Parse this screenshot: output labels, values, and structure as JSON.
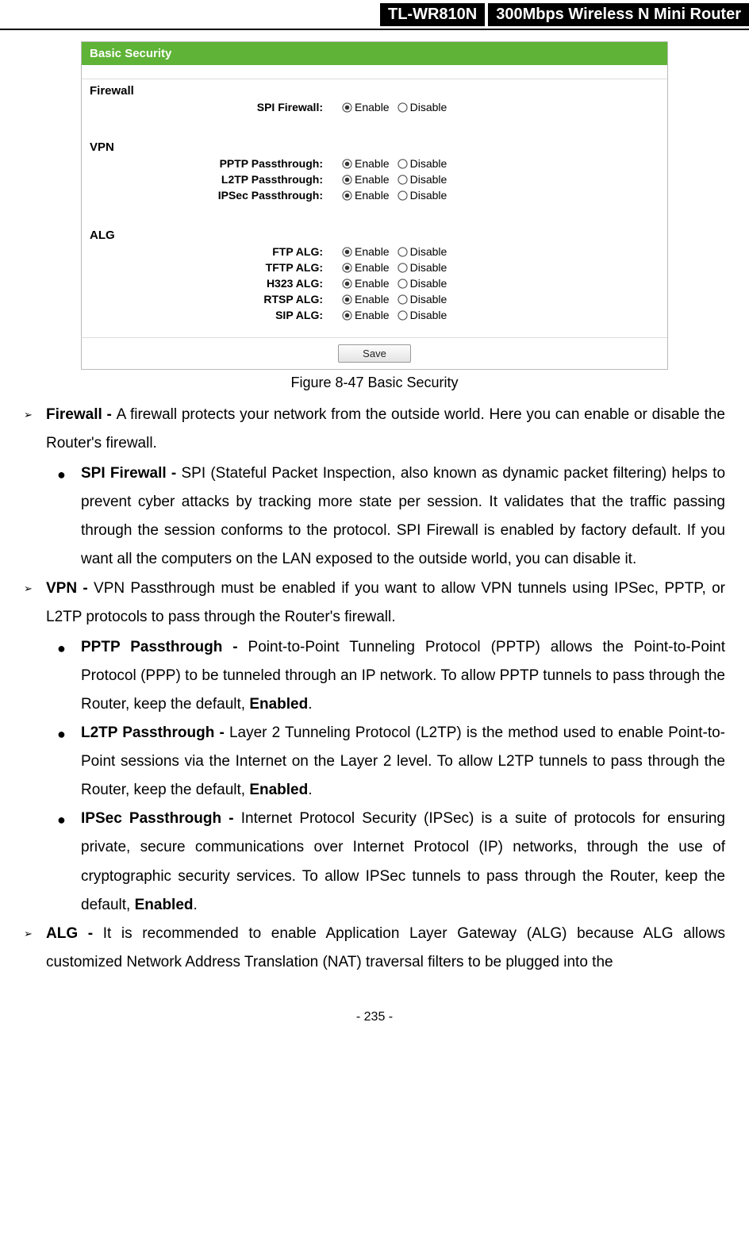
{
  "header": {
    "model": "TL-WR810N",
    "product": "300Mbps Wireless N Mini Router"
  },
  "panel": {
    "title": "Basic Security",
    "colors": {
      "title_bg": "#5fb336",
      "title_text": "#ffffff",
      "border": "#bbbbbb"
    },
    "save_button": "Save",
    "option_labels": {
      "enable": "Enable",
      "disable": "Disable"
    },
    "sections": [
      {
        "heading": "Firewall",
        "rows": [
          {
            "label": "SPI Firewall:",
            "selected": "enable"
          }
        ]
      },
      {
        "heading": "VPN",
        "rows": [
          {
            "label": "PPTP Passthrough:",
            "selected": "enable"
          },
          {
            "label": "L2TP Passthrough:",
            "selected": "enable"
          },
          {
            "label": "IPSec Passthrough:",
            "selected": "enable"
          }
        ]
      },
      {
        "heading": "ALG",
        "rows": [
          {
            "label": "FTP ALG:",
            "selected": "enable"
          },
          {
            "label": "TFTP ALG:",
            "selected": "enable"
          },
          {
            "label": "H323 ALG:",
            "selected": "enable"
          },
          {
            "label": "RTSP ALG:",
            "selected": "enable"
          },
          {
            "label": "SIP ALG:",
            "selected": "enable"
          }
        ]
      }
    ]
  },
  "figure_caption": "Figure 8-47 Basic Security",
  "doc": {
    "firewall_lead": {
      "bold": "Firewall - ",
      "text": "A firewall protects your network from the outside world. Here you can enable or disable the Router's firewall."
    },
    "spi": {
      "bold": "SPI Firewall - ",
      "text": "SPI (Stateful Packet Inspection, also known as dynamic packet filtering) helps to prevent cyber attacks by tracking more state per session. It validates that the traffic passing through the session conforms to the protocol. SPI Firewall is enabled by factory default. If you want all the computers on the LAN exposed to the outside world, you can disable it."
    },
    "vpn_lead": {
      "bold": "VPN - ",
      "text": "VPN Passthrough must be enabled if you want to allow VPN tunnels using IPSec, PPTP, or L2TP protocols to pass through the Router's firewall."
    },
    "pptp": {
      "bold": "PPTP Passthrough - ",
      "text1": "Point-to-Point Tunneling Protocol (PPTP) allows the Point-to-Point Protocol (PPP) to be tunneled through an IP network. To allow PPTP tunnels to pass through the Router, keep the default, ",
      "bold2": "Enabled",
      "text2": "."
    },
    "l2tp": {
      "bold": "L2TP Passthrough - ",
      "text1": "Layer 2 Tunneling Protocol (L2TP) is the method used to enable Point-to-Point sessions via the Internet on the Layer 2 level. To allow L2TP tunnels to pass through the Router, keep the default, ",
      "bold2": "Enabled",
      "text2": "."
    },
    "ipsec": {
      "bold": "IPSec Passthrough - ",
      "text1": "Internet Protocol Security (IPSec) is a suite of protocols for ensuring private, secure communications over Internet Protocol (IP) networks, through the use of cryptographic security services. To allow IPSec tunnels to pass through the Router, keep the default, ",
      "bold2": "Enabled",
      "text2": "."
    },
    "alg_lead": {
      "bold": "ALG - ",
      "text": "It is recommended to enable Application Layer Gateway (ALG) because ALG allows customized Network Address Translation (NAT) traversal filters to be plugged into the"
    }
  },
  "page_number": "- 235 -"
}
